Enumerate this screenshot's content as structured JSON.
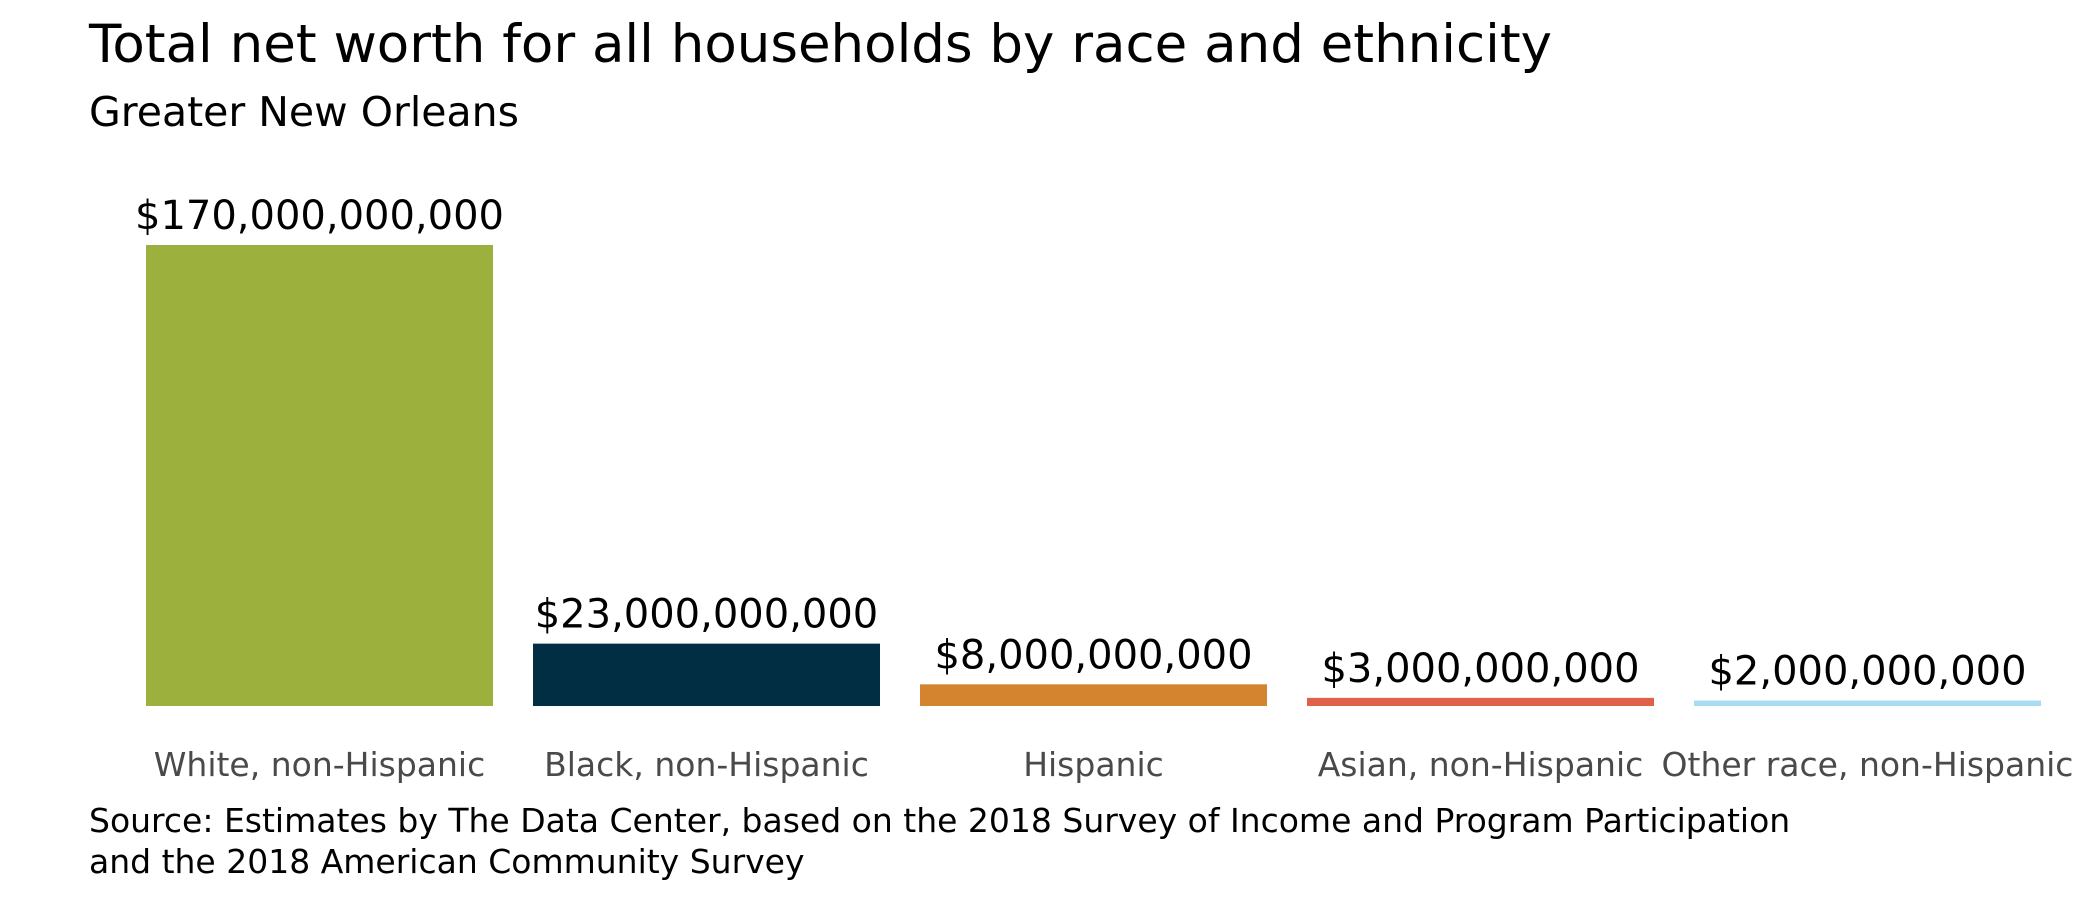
{
  "chart_data": {
    "type": "bar",
    "title": "Total net worth for all households by race and ethnicity",
    "subtitle": "Greater New Orleans",
    "categories": [
      "White, non-Hispanic",
      "Black, non-Hispanic",
      "Hispanic",
      "Asian, non-Hispanic",
      "Other race, non-Hispanic"
    ],
    "values": [
      170000000000,
      23000000000,
      8000000000,
      3000000000,
      2000000000
    ],
    "value_labels": [
      "$170,000,000,000",
      "$23,000,000,000",
      "$8,000,000,000",
      "$3,000,000,000",
      "$2,000,000,000"
    ],
    "colors": [
      "#9cb13d",
      "#022e44",
      "#d4842e",
      "#e0604a",
      "#a8dcf2"
    ],
    "xlabel": "",
    "ylabel": "",
    "ylim": [
      0,
      170000000000
    ],
    "grid": false,
    "legend": "none",
    "source_lines": [
      "Source: Estimates by The Data Center, based on the 2018 Survey of Income and Program Participation",
      "and the 2018 American Community Survey"
    ]
  }
}
